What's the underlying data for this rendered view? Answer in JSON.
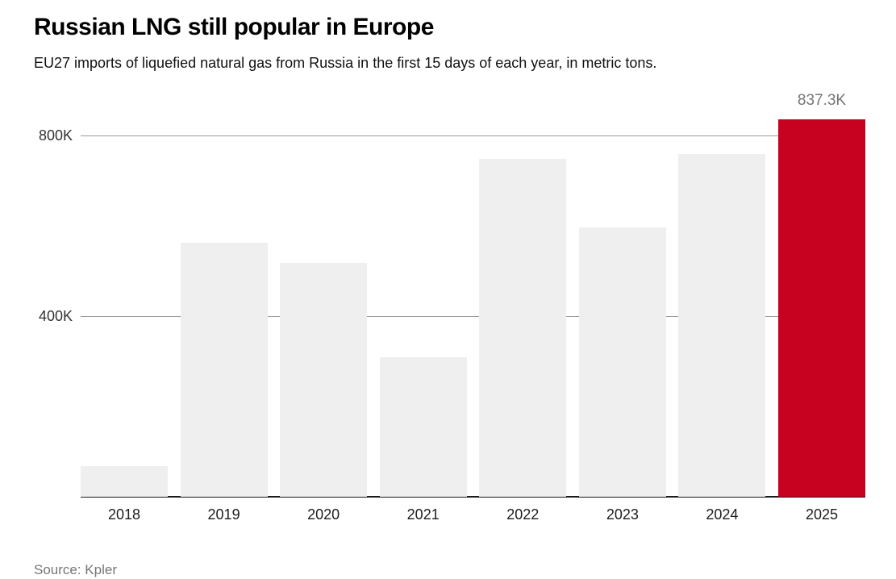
{
  "chart_data": {
    "type": "bar",
    "title": "Russian LNG still popular in Europe",
    "subtitle": "EU27 imports of liquefied natural gas from Russia in the first 15 days of each year, in metric tons.",
    "categories": [
      "2018",
      "2019",
      "2020",
      "2021",
      "2022",
      "2023",
      "2024",
      "2025"
    ],
    "values": [
      68,
      563,
      519,
      310,
      750,
      597,
      761,
      837.3
    ],
    "unit": "thousand metric tons",
    "ylim": [
      0,
      851
    ],
    "yticks": [
      {
        "value": 400,
        "label": "400K"
      },
      {
        "value": 800,
        "label": "800K"
      }
    ],
    "grid": "horizontal, drawn behind bars",
    "legend": "none",
    "highlight_category": "2025",
    "annotation": {
      "category": "2025",
      "label": "837.3K"
    },
    "source": "Source: Kpler"
  },
  "theme": {
    "background": "#ffffff",
    "bar_default": "#efefef",
    "bar_highlight": "#c60220",
    "gridline": "#9b9b9b",
    "axis_line": "#1a1a1a",
    "title_color": "#000000",
    "subtitle_color": "#111111",
    "tick_label_color": "#333333",
    "category_label_color": "#1d1d1d",
    "annotation_color": "#757575",
    "source_color": "#767676"
  }
}
